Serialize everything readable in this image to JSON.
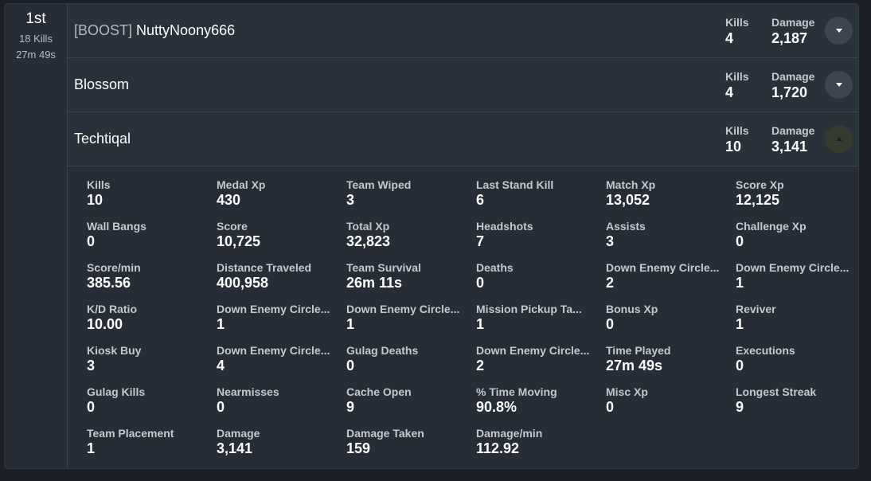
{
  "team": {
    "placement": "1st",
    "kills_text": "18 Kills",
    "time": "27m 49s"
  },
  "players": [
    {
      "tag": "[BOOST]",
      "name": "NuttyNoony666",
      "kills_label": "Kills",
      "kills": "4",
      "damage_label": "Damage",
      "damage": "2,187",
      "expanded": false
    },
    {
      "tag": "",
      "name": "Blossom",
      "kills_label": "Kills",
      "kills": "4",
      "damage_label": "Damage",
      "damage": "1,720",
      "expanded": false
    },
    {
      "tag": "",
      "name": "Techtiqal",
      "kills_label": "Kills",
      "kills": "10",
      "damage_label": "Damage",
      "damage": "3,141",
      "expanded": true
    }
  ],
  "details": [
    {
      "label": "Kills",
      "value": "10"
    },
    {
      "label": "Medal Xp",
      "value": "430"
    },
    {
      "label": "Team Wiped",
      "value": "3"
    },
    {
      "label": "Last Stand Kill",
      "value": "6"
    },
    {
      "label": "Match Xp",
      "value": "13,052"
    },
    {
      "label": "Score Xp",
      "value": "12,125"
    },
    {
      "label": "Wall Bangs",
      "value": "0"
    },
    {
      "label": "Score",
      "value": "10,725"
    },
    {
      "label": "Total Xp",
      "value": "32,823"
    },
    {
      "label": "Headshots",
      "value": "7"
    },
    {
      "label": "Assists",
      "value": "3"
    },
    {
      "label": "Challenge Xp",
      "value": "0"
    },
    {
      "label": "Score/min",
      "value": "385.56"
    },
    {
      "label": "Distance Traveled",
      "value": "400,958"
    },
    {
      "label": "Team Survival",
      "value": "26m 11s"
    },
    {
      "label": "Deaths",
      "value": "0"
    },
    {
      "label": "Down Enemy Circle...",
      "value": "2"
    },
    {
      "label": "Down Enemy Circle...",
      "value": "1"
    },
    {
      "label": "K/D Ratio",
      "value": "10.00"
    },
    {
      "label": "Down Enemy Circle...",
      "value": "1"
    },
    {
      "label": "Down Enemy Circle...",
      "value": "1"
    },
    {
      "label": "Mission Pickup Ta...",
      "value": "1"
    },
    {
      "label": "Bonus Xp",
      "value": "0"
    },
    {
      "label": "Reviver",
      "value": "1"
    },
    {
      "label": "Kiosk Buy",
      "value": "3"
    },
    {
      "label": "Down Enemy Circle...",
      "value": "4"
    },
    {
      "label": "Gulag Deaths",
      "value": "0"
    },
    {
      "label": "Down Enemy Circle...",
      "value": "2"
    },
    {
      "label": "Time Played",
      "value": "27m 49s"
    },
    {
      "label": "Executions",
      "value": "0"
    },
    {
      "label": "Gulag Kills",
      "value": "0"
    },
    {
      "label": "Nearmisses",
      "value": "0"
    },
    {
      "label": "Cache Open",
      "value": "9"
    },
    {
      "label": "% Time Moving",
      "value": "90.8%"
    },
    {
      "label": "Misc Xp",
      "value": "0"
    },
    {
      "label": "Longest Streak",
      "value": "9"
    },
    {
      "label": "Team Placement",
      "value": "1"
    },
    {
      "label": "Damage",
      "value": "3,141"
    },
    {
      "label": "Damage Taken",
      "value": "159"
    },
    {
      "label": "Damage/min",
      "value": "112.92"
    }
  ]
}
